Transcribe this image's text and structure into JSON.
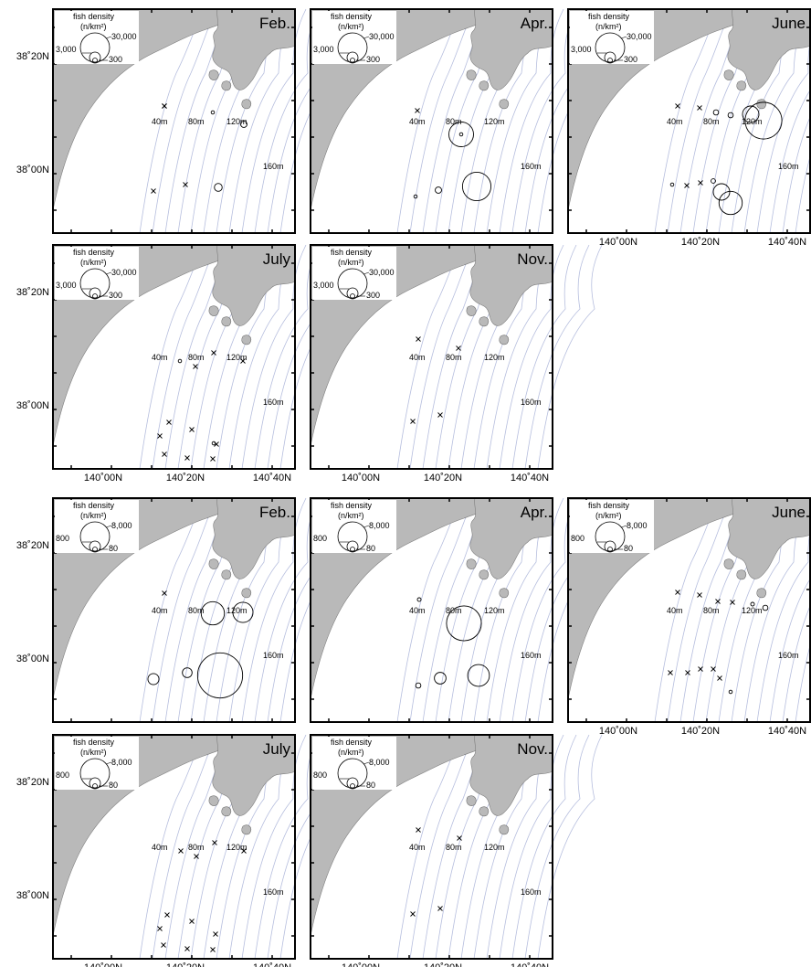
{
  "lat_labels": [
    "38˚20N",
    "38˚00N"
  ],
  "lon_labels": [
    "140˚00N",
    "140˚20N",
    "140˚40N"
  ],
  "depth_labels": [
    "40m",
    "80m",
    "120m",
    "160m"
  ],
  "legend_title": "fish density",
  "legend_unit": "(n/km²)",
  "colors": {
    "land": "#b9b9b9",
    "sea": "#ffffff",
    "contour": "#b6bede",
    "border": "#000000"
  },
  "panels": [
    {
      "id": "top-feb",
      "month": "Feb.",
      "legend": [
        "3,000",
        "30,000",
        "300"
      ],
      "stations": [
        [
          "x",
          0
        ],
        [
          "x",
          0
        ],
        [
          "o",
          10
        ],
        [
          "o",
          60
        ],
        [
          "x",
          0
        ],
        [
          "o",
          90
        ],
        [
          "x",
          0
        ]
      ]
    },
    {
      "id": "top-apr",
      "month": "Apr.",
      "legend": [
        "3,000",
        "30,000",
        "300"
      ],
      "stations": [
        [
          "x",
          0
        ],
        [
          "o",
          900
        ],
        [
          "o",
          10
        ],
        [
          "o",
          60
        ],
        [
          "o",
          1200
        ],
        [
          "o",
          10
        ]
      ]
    },
    {
      "id": "top-june",
      "month": "June",
      "legend": [
        "3,000",
        "30,000",
        "300"
      ],
      "stations": [
        [
          "x",
          0
        ],
        [
          "x",
          0
        ],
        [
          "o",
          40
        ],
        [
          "o",
          40
        ],
        [
          "o",
          400
        ],
        [
          "o",
          2000
        ],
        [
          "o",
          10
        ],
        [
          "x",
          0
        ],
        [
          "x",
          0
        ],
        [
          "o",
          30
        ],
        [
          "o",
          400
        ],
        [
          "o",
          800
        ]
      ]
    },
    {
      "id": "top-july",
      "month": "July",
      "legend": [
        "3,000",
        "30,000",
        "300"
      ],
      "stations": [
        [
          "o",
          10
        ],
        [
          "x",
          0
        ],
        [
          "x",
          0
        ],
        [
          "x",
          0
        ],
        [
          "x",
          0
        ],
        [
          "x",
          0
        ],
        [
          "x",
          0
        ],
        [
          "x",
          0
        ],
        [
          "o",
          5
        ],
        [
          "x",
          0
        ],
        [
          "x",
          0
        ],
        [
          "x",
          0
        ]
      ]
    },
    {
      "id": "top-nov",
      "month": "Nov.",
      "legend": [
        "3,000",
        "30,000",
        "300"
      ],
      "stations": [
        [
          "x",
          0
        ],
        [
          "x",
          0
        ],
        [
          "x",
          0
        ],
        [
          "x",
          0
        ]
      ]
    },
    {
      "id": "bot-feb",
      "month": "Feb.",
      "legend": [
        "800",
        "8,000",
        "80"
      ],
      "stations": [
        [
          "x",
          0
        ],
        [
          "o",
          800
        ],
        [
          "o",
          600
        ],
        [
          "o",
          180
        ],
        [
          "o",
          140
        ],
        [
          "o",
          3000
        ]
      ]
    },
    {
      "id": "bot-apr",
      "month": "Apr.",
      "legend": [
        "800",
        "8,000",
        "80"
      ],
      "stations": [
        [
          "o",
          20
        ],
        [
          "o",
          1800
        ],
        [
          "o",
          40
        ],
        [
          "o",
          200
        ],
        [
          "o",
          700
        ]
      ]
    },
    {
      "id": "bot-june",
      "month": "June",
      "legend": [
        "800",
        "8,000",
        "80"
      ],
      "stations": [
        [
          "x",
          0
        ],
        [
          "x",
          0
        ],
        [
          "x",
          0
        ],
        [
          "x",
          0
        ],
        [
          "o",
          20
        ],
        [
          "o",
          40
        ],
        [
          "x",
          0
        ],
        [
          "x",
          0
        ],
        [
          "x",
          0
        ],
        [
          "x",
          0
        ],
        [
          "x",
          0
        ],
        [
          "o",
          5
        ]
      ]
    },
    {
      "id": "bot-july",
      "month": "July",
      "legend": [
        "800",
        "8,000",
        "80"
      ],
      "stations": [
        [
          "x",
          0
        ],
        [
          "x",
          0
        ],
        [
          "x",
          0
        ],
        [
          "x",
          0
        ],
        [
          "x",
          0
        ],
        [
          "x",
          0
        ],
        [
          "x",
          0
        ],
        [
          "x",
          0
        ],
        [
          "x",
          0
        ],
        [
          "x",
          0
        ],
        [
          "x",
          0
        ]
      ]
    },
    {
      "id": "bot-nov",
      "month": "Nov.",
      "legend": [
        "800",
        "8,000",
        "80"
      ],
      "stations": [
        [
          "x",
          0
        ],
        [
          "x",
          0
        ],
        [
          "x",
          0
        ],
        [
          "x",
          0
        ]
      ]
    }
  ]
}
